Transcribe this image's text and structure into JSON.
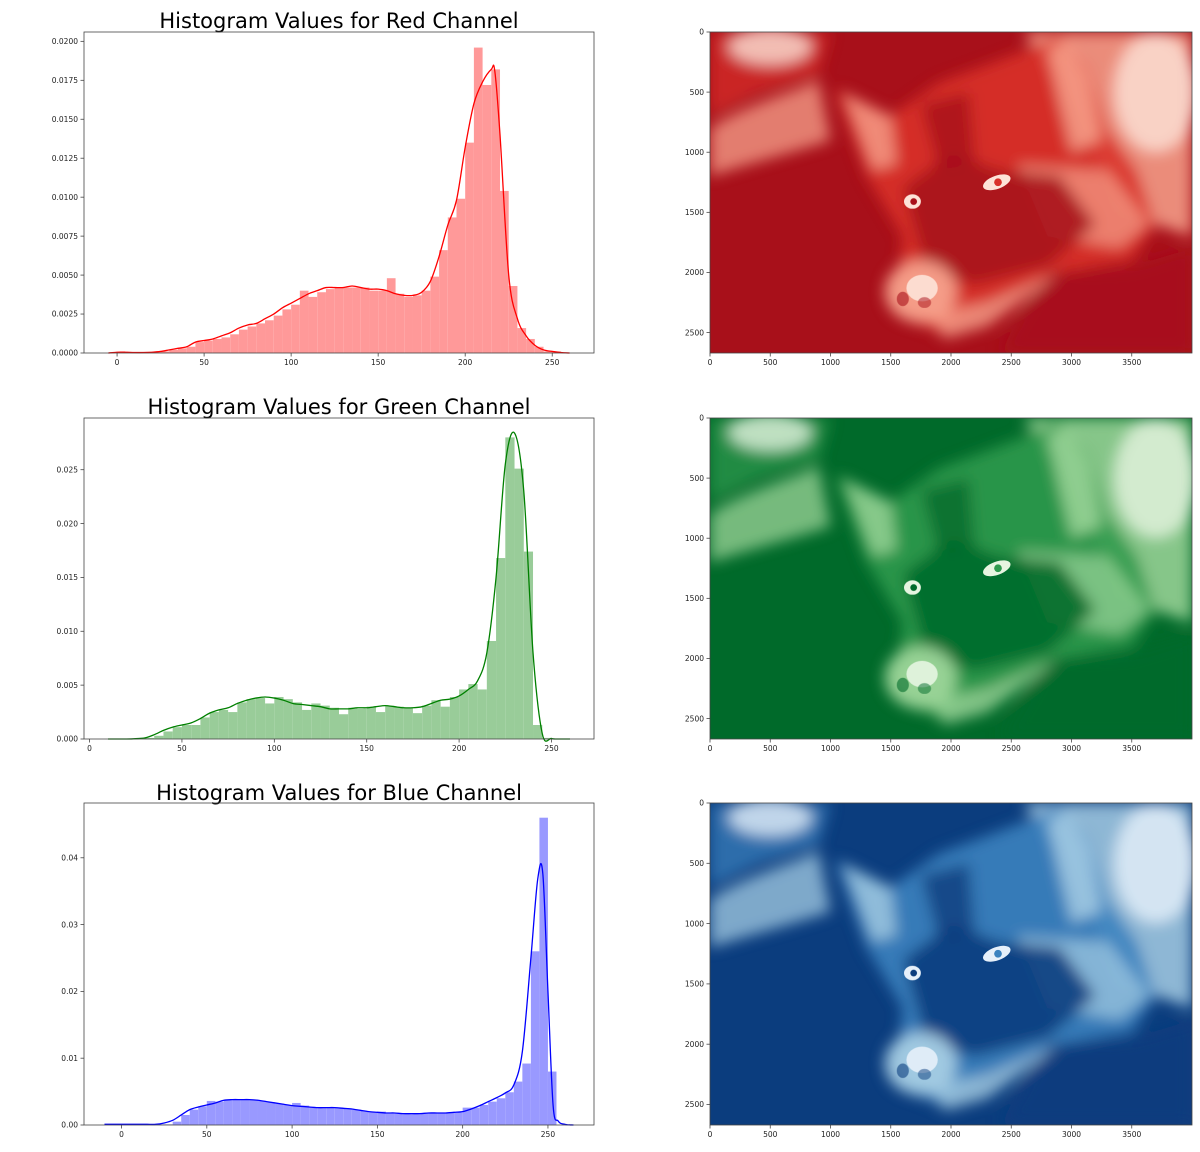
{
  "chart_data": [
    {
      "type": "bar",
      "kind": "histogram-with-kde",
      "title": "Histogram Values for Red Channel",
      "bar_color": "#ff9999",
      "line_color": "#ff0000",
      "xlim": [
        -19,
        274
      ],
      "ylim": [
        0,
        0.0206
      ],
      "xticks": [
        "0",
        "50",
        "100",
        "150",
        "200",
        "250"
      ],
      "yticks": [
        "0.0000",
        "0.0025",
        "0.0050",
        "0.0075",
        "0.0100",
        "0.0125",
        "0.0150",
        "0.0175",
        "0.0200"
      ],
      "bin_start": 0,
      "bin_width": 5,
      "values": [
        5e-05,
        5e-05,
        3e-05,
        3e-05,
        5e-05,
        0.0001,
        0.0002,
        0.0003,
        0.0004,
        0.0007,
        0.0008,
        0.0009,
        0.001,
        0.0012,
        0.0015,
        0.0017,
        0.0019,
        0.0021,
        0.0024,
        0.0028,
        0.0031,
        0.004,
        0.0036,
        0.0039,
        0.0041,
        0.0042,
        0.0042,
        0.0042,
        0.0042,
        0.004,
        0.004,
        0.0048,
        0.0038,
        0.0036,
        0.0037,
        0.004,
        0.0049,
        0.0066,
        0.0087,
        0.0099,
        0.0135,
        0.0196,
        0.0172,
        0.0182,
        0.0104,
        0.0043,
        0.0016,
        0.0009,
        0.0004,
        0.0001,
        0.0001
      ],
      "kde": {
        "x": [
          -5,
          0,
          5,
          10,
          15,
          20,
          25,
          30,
          35,
          40,
          45,
          50,
          55,
          60,
          65,
          70,
          75,
          80,
          85,
          90,
          95,
          100,
          105,
          110,
          115,
          120,
          125,
          130,
          135,
          140,
          145,
          150,
          155,
          160,
          165,
          170,
          175,
          180,
          185,
          190,
          195,
          200,
          205,
          210,
          215,
          217,
          220,
          225,
          230,
          235,
          240,
          245,
          250,
          255,
          260
        ],
        "y": [
          0,
          5e-05,
          5e-05,
          3e-05,
          3e-05,
          5e-05,
          0.0001,
          0.0002,
          0.0003,
          0.0004,
          0.0007,
          0.0008,
          0.0009,
          0.0011,
          0.0013,
          0.0016,
          0.0018,
          0.0019,
          0.0022,
          0.0025,
          0.0029,
          0.0032,
          0.0035,
          0.0038,
          0.004,
          0.0042,
          0.0042,
          0.0042,
          0.0043,
          0.0042,
          0.0041,
          0.0041,
          0.004,
          0.0038,
          0.0037,
          0.0037,
          0.0039,
          0.0046,
          0.0062,
          0.0082,
          0.0098,
          0.0132,
          0.016,
          0.0174,
          0.0182,
          0.0181,
          0.014,
          0.005,
          0.0022,
          0.0011,
          0.0005,
          0.0002,
          0.0001,
          3e-05,
          0
        ]
      }
    },
    {
      "type": "heatmap",
      "kind": "image",
      "colormap": "Reds",
      "palette": {
        "dark": "#a8101a",
        "mid": "#d9302a",
        "light": "#f7a28c",
        "lightest": "#fde3d8"
      },
      "xlim": [
        0,
        4000
      ],
      "ylim": [
        2670,
        0
      ],
      "xticks": [
        "0",
        "500",
        "1000",
        "1500",
        "2000",
        "2500",
        "3000",
        "3500"
      ],
      "yticks": [
        "0",
        "500",
        "1000",
        "1500",
        "2000",
        "2500"
      ]
    },
    {
      "type": "bar",
      "kind": "histogram-with-kde",
      "title": "Histogram Values for Green Channel",
      "bar_color": "#99cc99",
      "line_color": "#008000",
      "xlim": [
        -3,
        273
      ],
      "ylim": [
        0,
        0.0298
      ],
      "xticks": [
        "0",
        "50",
        "100",
        "150",
        "200",
        "250"
      ],
      "yticks": [
        "0.000",
        "0.005",
        "0.010",
        "0.015",
        "0.020",
        "0.025"
      ],
      "bin_start": 10,
      "bin_width": 5,
      "values": [
        0,
        0,
        0,
        0,
        0.0001,
        0.0003,
        0.0007,
        0.0011,
        0.0013,
        0.0013,
        0.002,
        0.0025,
        0.0027,
        0.0025,
        0.0034,
        0.0037,
        0.0038,
        0.0033,
        0.0039,
        0.0037,
        0.0034,
        0.0027,
        0.0033,
        0.0031,
        0.0029,
        0.0023,
        0.0029,
        0.0028,
        0.003,
        0.0025,
        0.0031,
        0.003,
        0.0029,
        0.0024,
        0.0031,
        0.0036,
        0.003,
        0.0039,
        0.0046,
        0.0051,
        0.0046,
        0.0091,
        0.0168,
        0.028,
        0.0251,
        0.0174,
        0.0013,
        0.0001,
        0
      ],
      "kde": {
        "x": [
          10,
          15,
          20,
          25,
          30,
          35,
          40,
          45,
          50,
          55,
          60,
          65,
          70,
          75,
          80,
          85,
          90,
          95,
          100,
          105,
          110,
          115,
          120,
          125,
          130,
          135,
          140,
          145,
          150,
          155,
          160,
          165,
          170,
          175,
          180,
          185,
          190,
          195,
          200,
          205,
          210,
          215,
          220,
          225,
          230,
          235,
          240,
          245,
          250,
          255,
          260
        ],
        "y": [
          0,
          0,
          0,
          3e-05,
          0.0001,
          0.0004,
          0.0008,
          0.0011,
          0.0013,
          0.0015,
          0.0019,
          0.0024,
          0.0027,
          0.0029,
          0.0033,
          0.0036,
          0.0038,
          0.0039,
          0.0038,
          0.0036,
          0.0033,
          0.0032,
          0.0031,
          0.003,
          0.0028,
          0.0028,
          0.0028,
          0.0029,
          0.0029,
          0.003,
          0.0031,
          0.003,
          0.0029,
          0.0029,
          0.003,
          0.0033,
          0.0036,
          0.0037,
          0.004,
          0.0046,
          0.0054,
          0.008,
          0.015,
          0.0255,
          0.0284,
          0.023,
          0.008,
          0.0005,
          5e-05,
          0,
          0
        ]
      }
    },
    {
      "type": "heatmap",
      "kind": "image",
      "colormap": "Greens",
      "palette": {
        "dark": "#006a2a",
        "mid": "#2e9a4e",
        "light": "#9dd69a",
        "lightest": "#e6f5e1"
      },
      "xlim": [
        0,
        4000
      ],
      "ylim": [
        2670,
        0
      ],
      "xticks": [
        "0",
        "500",
        "1000",
        "1500",
        "2000",
        "2500",
        "3000",
        "3500"
      ],
      "yticks": [
        "0",
        "500",
        "1000",
        "1500",
        "2000",
        "2500"
      ]
    },
    {
      "type": "bar",
      "kind": "histogram-with-kde",
      "title": "Histogram Values for Blue Channel",
      "bar_color": "#9999ff",
      "line_color": "#0000ff",
      "xlim": [
        -22,
        277
      ],
      "ylim": [
        0,
        0.0482
      ],
      "xticks": [
        "0",
        "50",
        "100",
        "150",
        "200",
        "250"
      ],
      "yticks": [
        "0.00",
        "0.01",
        "0.02",
        "0.03",
        "0.04"
      ],
      "bin_start": 0,
      "bin_width": 5,
      "values": [
        0.0001,
        0.0001,
        0.0001,
        0.0001,
        0.0001,
        0.0001,
        0.0005,
        0.0015,
        0.0023,
        0.0028,
        0.0036,
        0.0035,
        0.0037,
        0.0038,
        0.0038,
        0.0038,
        0.0036,
        0.0034,
        0.0032,
        0.003,
        0.0033,
        0.0029,
        0.0027,
        0.0026,
        0.0026,
        0.0026,
        0.0025,
        0.0023,
        0.0021,
        0.0019,
        0.002,
        0.0017,
        0.0017,
        0.0017,
        0.0017,
        0.0018,
        0.0018,
        0.0018,
        0.0018,
        0.0019,
        0.0026,
        0.0026,
        0.003,
        0.0035,
        0.004,
        0.0049,
        0.0065,
        0.0092,
        0.026,
        0.046,
        0.008
      ],
      "kde": {
        "x": [
          -10,
          -5,
          0,
          5,
          10,
          15,
          20,
          25,
          30,
          35,
          40,
          45,
          50,
          55,
          60,
          65,
          70,
          75,
          80,
          85,
          90,
          95,
          100,
          105,
          110,
          115,
          120,
          125,
          130,
          135,
          140,
          145,
          150,
          155,
          160,
          165,
          170,
          175,
          180,
          185,
          190,
          195,
          200,
          205,
          210,
          215,
          220,
          225,
          230,
          235,
          240,
          244,
          247,
          250,
          253,
          256,
          260,
          265
        ],
        "y": [
          0.0001,
          0.0001,
          0.0001,
          0.0001,
          0.0001,
          0.0001,
          0.0001,
          0.0003,
          0.0007,
          0.0015,
          0.0023,
          0.0027,
          0.003,
          0.0033,
          0.0037,
          0.0038,
          0.0038,
          0.0038,
          0.0037,
          0.0035,
          0.0033,
          0.0031,
          0.0029,
          0.0028,
          0.0027,
          0.0026,
          0.0026,
          0.0026,
          0.0025,
          0.0024,
          0.0022,
          0.002,
          0.0019,
          0.0018,
          0.0018,
          0.0017,
          0.0017,
          0.0017,
          0.0018,
          0.0018,
          0.0018,
          0.0019,
          0.002,
          0.0024,
          0.0029,
          0.0035,
          0.0041,
          0.0048,
          0.006,
          0.011,
          0.025,
          0.0368,
          0.0376,
          0.02,
          0.003,
          0.0006,
          0.0001,
          0
        ]
      }
    },
    {
      "type": "heatmap",
      "kind": "image",
      "colormap": "Blues",
      "palette": {
        "dark": "#0b3d7e",
        "mid": "#3a82bf",
        "light": "#a6cde4",
        "lightest": "#e6f0fa"
      },
      "xlim": [
        0,
        4000
      ],
      "ylim": [
        2670,
        0
      ],
      "xticks": [
        "0",
        "500",
        "1000",
        "1500",
        "2000",
        "2500",
        "3000",
        "3500"
      ],
      "yticks": [
        "0",
        "500",
        "1000",
        "1500",
        "2000",
        "2500"
      ]
    }
  ]
}
